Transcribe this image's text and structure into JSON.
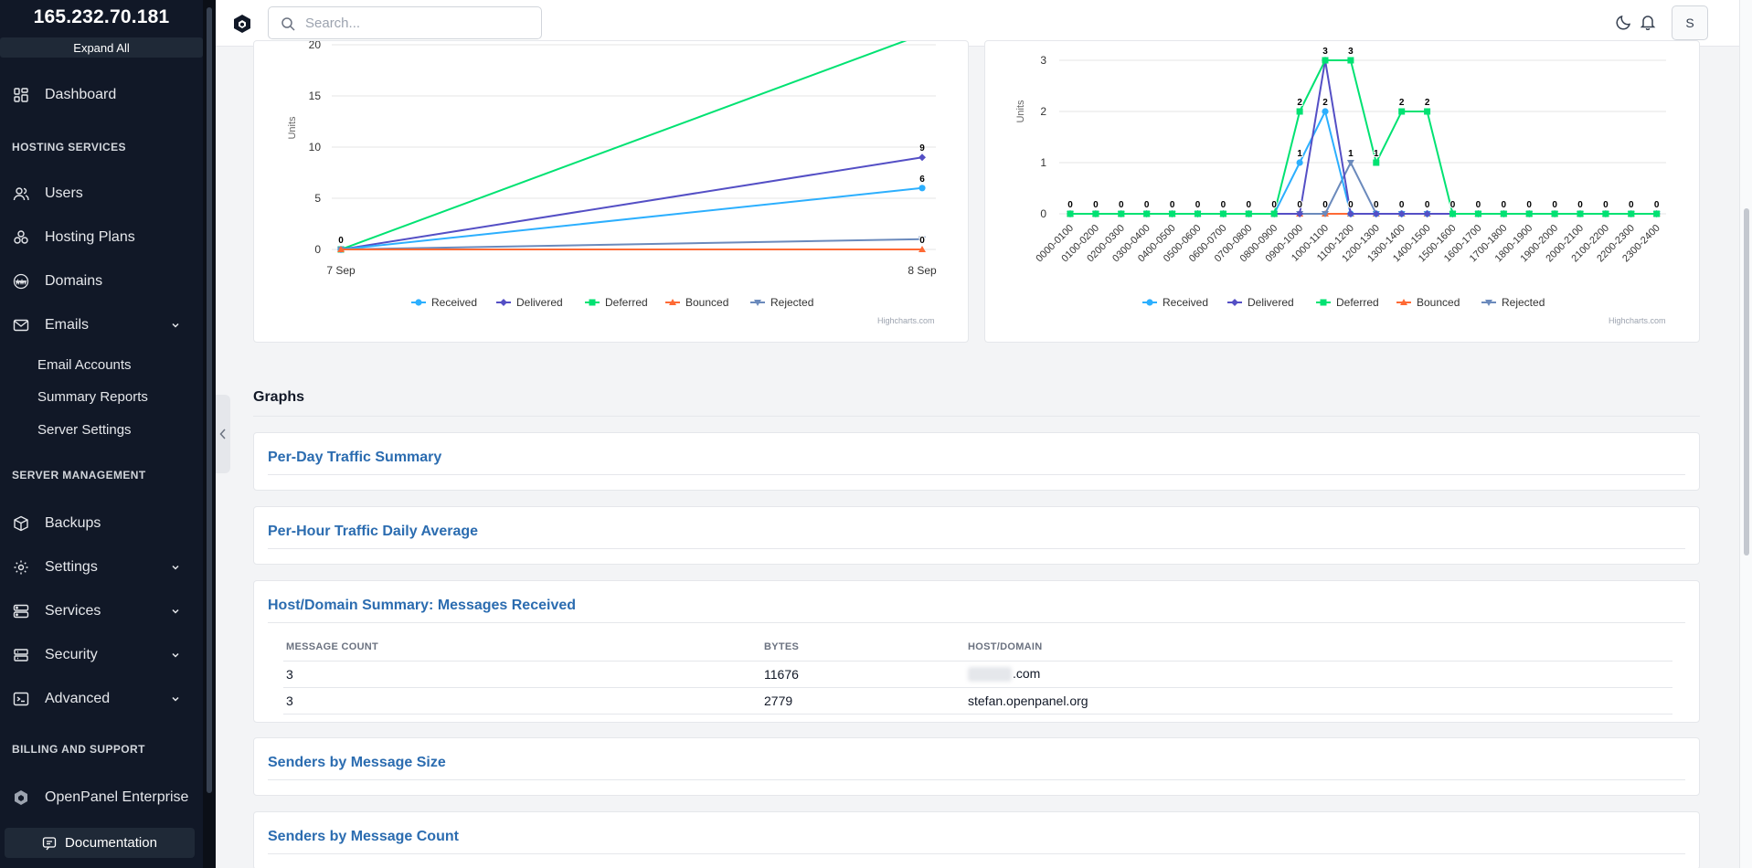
{
  "sidebar": {
    "server_ip": "165.232.70.181",
    "expand_all": "Expand All",
    "dashboard": "Dashboard",
    "hosting_services_title": "HOSTING SERVICES",
    "users": "Users",
    "hosting_plans": "Hosting Plans",
    "domains": "Domains",
    "emails": "Emails",
    "email_sub": [
      "Email Accounts",
      "Summary Reports",
      "Server Settings"
    ],
    "server_management_title": "SERVER MANAGEMENT",
    "backups": "Backups",
    "settings": "Settings",
    "services": "Services",
    "security": "Security",
    "advanced": "Advanced",
    "billing_title": "BILLING AND SUPPORT",
    "enterprise": "OpenPanel Enterprise",
    "documentation": "Documentation"
  },
  "topbar": {
    "search_placeholder": "Search...",
    "avatar_initial": "S"
  },
  "colors": {
    "received": "#2caffe",
    "delivered": "#544fc5",
    "deferred": "#00e272",
    "bounced": "#fe6a35",
    "rejected": "#6b8abc"
  },
  "legend": [
    "Received",
    "Delivered",
    "Deferred",
    "Bounced",
    "Rejected"
  ],
  "credit": "Highcharts.com",
  "chart_data": [
    {
      "type": "line",
      "ylabel": "Units",
      "x": [
        "7 Sep",
        "8 Sep"
      ],
      "yticks": [
        0,
        5,
        10,
        15,
        20
      ],
      "series": [
        {
          "name": "Received",
          "values": [
            0,
            6
          ]
        },
        {
          "name": "Delivered",
          "values": [
            0,
            9
          ]
        },
        {
          "name": "Deferred",
          "values": [
            0,
            21
          ]
        },
        {
          "name": "Bounced",
          "values": [
            0,
            0
          ]
        },
        {
          "name": "Rejected",
          "values": [
            0,
            1
          ]
        }
      ],
      "data_labels": [
        {
          "x": "7 Sep",
          "value": "0"
        },
        {
          "x": "8 Sep",
          "value": "9"
        },
        {
          "x": "8 Sep",
          "value": "6"
        },
        {
          "x": "8 Sep",
          "value": "0"
        }
      ]
    },
    {
      "type": "line",
      "ylabel": "Units",
      "yticks": [
        0,
        1,
        2,
        3
      ],
      "x": [
        "0000-0100",
        "0100-0200",
        "0200-0300",
        "0300-0400",
        "0400-0500",
        "0500-0600",
        "0600-0700",
        "0700-0800",
        "0800-0900",
        "0900-1000",
        "1000-1100",
        "1100-1200",
        "1200-1300",
        "1300-1400",
        "1400-1500",
        "1500-1600",
        "1600-1700",
        "1700-1800",
        "1800-1900",
        "1900-2000",
        "2000-2100",
        "2100-2200",
        "2200-2300",
        "2300-2400"
      ],
      "series": [
        {
          "name": "Received",
          "values": [
            0,
            0,
            0,
            0,
            0,
            0,
            0,
            0,
            0,
            1,
            2,
            0,
            0,
            0,
            0,
            0,
            0,
            0,
            0,
            0,
            0,
            0,
            0,
            0
          ]
        },
        {
          "name": "Delivered",
          "values": [
            0,
            0,
            0,
            0,
            0,
            0,
            0,
            0,
            0,
            0,
            3,
            0,
            0,
            0,
            0,
            0,
            0,
            0,
            0,
            0,
            0,
            0,
            0,
            0
          ]
        },
        {
          "name": "Deferred",
          "values": [
            0,
            0,
            0,
            0,
            0,
            0,
            0,
            0,
            0,
            2,
            3,
            3,
            1,
            2,
            2,
            0,
            0,
            0,
            0,
            0,
            0,
            0,
            0,
            0
          ]
        },
        {
          "name": "Bounced",
          "values": [
            0,
            0,
            0,
            0,
            0,
            0,
            0,
            0,
            0,
            0,
            0,
            0,
            0,
            0,
            0,
            0,
            0,
            0,
            0,
            0,
            0,
            0,
            0,
            0
          ]
        },
        {
          "name": "Rejected",
          "values": [
            0,
            0,
            0,
            0,
            0,
            0,
            0,
            0,
            0,
            0,
            0,
            1,
            0,
            0,
            0,
            0,
            0,
            0,
            0,
            0,
            0,
            0,
            0,
            0
          ]
        }
      ]
    }
  ],
  "graphs": {
    "title": "Graphs",
    "per_day": "Per-Day Traffic Summary",
    "per_hour": "Per-Hour Traffic Daily Average",
    "host_domain": "Host/Domain Summary: Messages Received",
    "senders_size": "Senders by Message Size",
    "senders_count": "Senders by Message Count",
    "table": {
      "headers": [
        "MESSAGE COUNT",
        "BYTES",
        "HOST/DOMAIN"
      ],
      "rows": [
        {
          "count": "3",
          "bytes": "11676",
          "domain": ".com"
        },
        {
          "count": "3",
          "bytes": "2779",
          "domain": "stefan.openpanel.org"
        }
      ]
    }
  }
}
